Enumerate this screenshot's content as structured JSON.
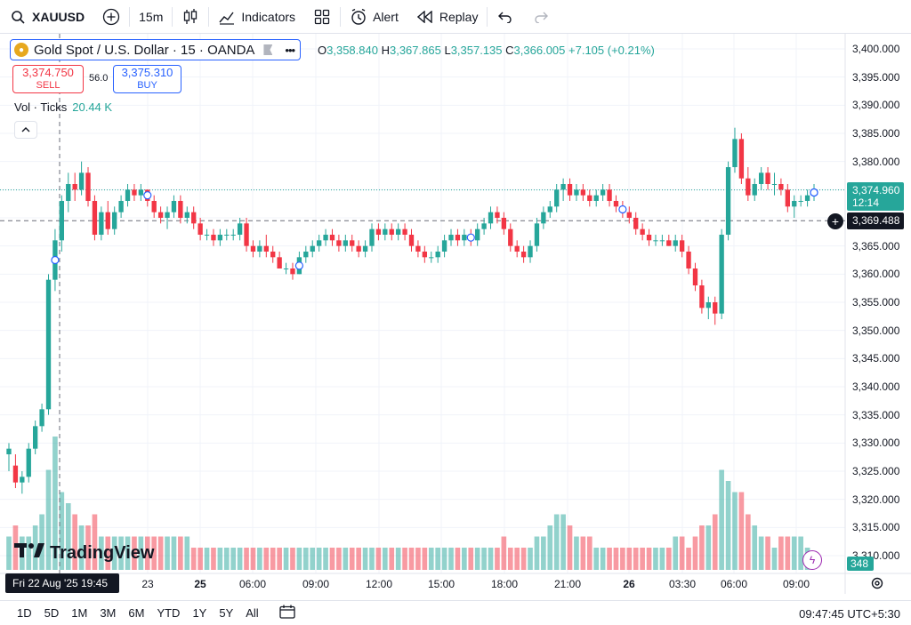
{
  "toolbar": {
    "symbol": "XAUUSD",
    "interval": "15m",
    "indicators_label": "Indicators",
    "alert_label": "Alert",
    "replay_label": "Replay"
  },
  "legend": {
    "title": "Gold Spot / U.S. Dollar · 15 · OANDA",
    "ohlc": {
      "o_label": "O",
      "o": "3,358.840",
      "h_label": "H",
      "h": "3,367.865",
      "l_label": "L",
      "l": "3,357.135",
      "c_label": "C",
      "c": "3,366.005",
      "change": "+7.105 (+0.21%)"
    },
    "sell_price": "3,374.750",
    "sell_label": "SELL",
    "spread": "56.0",
    "buy_price": "3,375.310",
    "buy_label": "BUY",
    "volume_label": "Vol · Ticks",
    "volume_value": "20.44 K"
  },
  "price_scale": {
    "ticks": [
      "3,400.000",
      "3,395.000",
      "3,390.000",
      "3,385.000",
      "3,380.000",
      "3,375.000",
      "3,370.000",
      "3,365.000",
      "3,360.000",
      "3,355.000",
      "3,350.000",
      "3,345.000",
      "3,340.000",
      "3,335.000",
      "3,330.000",
      "3,325.000",
      "3,320.000",
      "3,315.000",
      "3,310.000"
    ],
    "last_price": "3,374.960",
    "countdown": "12:14",
    "crosshair_price": "3,369.488",
    "volume_last": "348"
  },
  "time_axis": {
    "crosshair_label": "Fri 22 Aug '25   19:45",
    "ticks": [
      "23",
      "25",
      "06:00",
      "09:00",
      "12:00",
      "15:00",
      "18:00",
      "21:00",
      "26",
      "03:30",
      "06:00",
      "09:00"
    ]
  },
  "logo": {
    "text": "TradingView"
  },
  "bottom_bar": {
    "ranges": [
      "1D",
      "5D",
      "1M",
      "3M",
      "6M",
      "YTD",
      "1Y",
      "5Y",
      "All"
    ],
    "clock": "09:47:45 UTC+5:30"
  },
  "colors": {
    "up": "#26a69a",
    "down": "#f23645",
    "accent": "#2962ff"
  },
  "chart_data": {
    "type": "candlestick",
    "ylim": [
      3310,
      3400
    ],
    "last": 3374.96,
    "crosshair": 3369.488,
    "candles": [
      [
        3328,
        3330,
        3325,
        3329
      ],
      [
        3326,
        3328,
        3322,
        3323
      ],
      [
        3323,
        3325,
        3321,
        3324
      ],
      [
        3324,
        3330,
        3323,
        3329
      ],
      [
        3329,
        3334,
        3328,
        3333
      ],
      [
        3333,
        3337,
        3332,
        3336
      ],
      [
        3336,
        3360,
        3335,
        3359
      ],
      [
        3359,
        3368,
        3357,
        3366
      ],
      [
        3366,
        3374,
        3364,
        3373
      ],
      [
        3373,
        3378,
        3371,
        3376
      ],
      [
        3376,
        3378,
        3373,
        3375
      ],
      [
        3375,
        3380,
        3374,
        3378
      ],
      [
        3378,
        3379,
        3372,
        3373
      ],
      [
        3373,
        3374,
        3366,
        3367
      ],
      [
        3367,
        3372,
        3366,
        3371
      ],
      [
        3371,
        3373,
        3367,
        3368
      ],
      [
        3368,
        3372,
        3367,
        3371
      ],
      [
        3371,
        3374,
        3370,
        3373
      ],
      [
        3373,
        3376,
        3372,
        3375
      ],
      [
        3375,
        3376,
        3373,
        3374
      ],
      [
        3374,
        3376,
        3373,
        3375
      ],
      [
        3375,
        3375,
        3372,
        3373
      ],
      [
        3373,
        3374,
        3370,
        3371
      ],
      [
        3371,
        3372,
        3369,
        3370
      ],
      [
        3370,
        3372,
        3368,
        3371
      ],
      [
        3371,
        3374,
        3370,
        3373
      ],
      [
        3373,
        3374,
        3369,
        3370
      ],
      [
        3370,
        3372,
        3369,
        3371
      ],
      [
        3371,
        3372,
        3368,
        3369
      ],
      [
        3369,
        3370,
        3366,
        3367
      ],
      [
        3367,
        3368,
        3366,
        3367
      ],
      [
        3367,
        3368,
        3365,
        3366
      ],
      [
        3366,
        3368,
        3365,
        3367
      ],
      [
        3367,
        3368,
        3366,
        3367
      ],
      [
        3367,
        3368,
        3366,
        3367
      ],
      [
        3367,
        3370,
        3366,
        3369
      ],
      [
        3369,
        3370,
        3364,
        3365
      ],
      [
        3365,
        3366,
        3363,
        3364
      ],
      [
        3364,
        3366,
        3363,
        3365
      ],
      [
        3365,
        3367,
        3363,
        3364
      ],
      [
        3364,
        3365,
        3362,
        3363
      ],
      [
        3363,
        3364,
        3361,
        3361
      ],
      [
        3361,
        3362,
        3360,
        3361
      ],
      [
        3361,
        3362,
        3359,
        3360
      ],
      [
        3360,
        3364,
        3360,
        3363
      ],
      [
        3363,
        3365,
        3362,
        3364
      ],
      [
        3364,
        3366,
        3363,
        3365
      ],
      [
        3365,
        3367,
        3364,
        3366
      ],
      [
        3366,
        3368,
        3365,
        3367
      ],
      [
        3367,
        3368,
        3365,
        3366
      ],
      [
        3366,
        3367,
        3364,
        3365
      ],
      [
        3365,
        3367,
        3364,
        3366
      ],
      [
        3366,
        3367,
        3364,
        3365
      ],
      [
        3365,
        3366,
        3363,
        3364
      ],
      [
        3364,
        3366,
        3363,
        3365
      ],
      [
        3365,
        3369,
        3364,
        3368
      ],
      [
        3368,
        3369,
        3366,
        3367
      ],
      [
        3367,
        3369,
        3366,
        3368
      ],
      [
        3368,
        3369,
        3366,
        3367
      ],
      [
        3367,
        3369,
        3366,
        3368
      ],
      [
        3368,
        3369,
        3366,
        3367
      ],
      [
        3367,
        3368,
        3364,
        3365
      ],
      [
        3365,
        3366,
        3363,
        3364
      ],
      [
        3364,
        3365,
        3362,
        3363
      ],
      [
        3363,
        3364,
        3362,
        3363
      ],
      [
        3363,
        3365,
        3362,
        3364
      ],
      [
        3364,
        3367,
        3363,
        3366
      ],
      [
        3366,
        3368,
        3365,
        3367
      ],
      [
        3367,
        3368,
        3365,
        3366
      ],
      [
        3366,
        3368,
        3365,
        3367
      ],
      [
        3367,
        3368,
        3365,
        3366
      ],
      [
        3366,
        3369,
        3365,
        3368
      ],
      [
        3368,
        3370,
        3367,
        3369
      ],
      [
        3369,
        3372,
        3368,
        3371
      ],
      [
        3371,
        3372,
        3369,
        3370
      ],
      [
        3370,
        3371,
        3367,
        3368
      ],
      [
        3368,
        3369,
        3364,
        3365
      ],
      [
        3365,
        3366,
        3363,
        3364
      ],
      [
        3364,
        3365,
        3362,
        3363
      ],
      [
        3363,
        3366,
        3362,
        3365
      ],
      [
        3365,
        3370,
        3364,
        3369
      ],
      [
        3369,
        3372,
        3368,
        3371
      ],
      [
        3371,
        3373,
        3370,
        3372
      ],
      [
        3372,
        3376,
        3371,
        3375
      ],
      [
        3375,
        3377,
        3373,
        3376
      ],
      [
        3376,
        3377,
        3373,
        3374
      ],
      [
        3374,
        3376,
        3373,
        3375
      ],
      [
        3375,
        3376,
        3373,
        3374
      ],
      [
        3374,
        3375,
        3372,
        3373
      ],
      [
        3373,
        3375,
        3372,
        3374
      ],
      [
        3374,
        3376,
        3373,
        3375
      ],
      [
        3375,
        3376,
        3372,
        3373
      ],
      [
        3373,
        3374,
        3371,
        3372
      ],
      [
        3372,
        3373,
        3370,
        3371
      ],
      [
        3371,
        3372,
        3369,
        3370
      ],
      [
        3370,
        3371,
        3367,
        3368
      ],
      [
        3368,
        3369,
        3366,
        3367
      ],
      [
        3367,
        3368,
        3365,
        3366
      ],
      [
        3366,
        3367,
        3365,
        3366
      ],
      [
        3366,
        3367,
        3365,
        3366
      ],
      [
        3366,
        3367,
        3365,
        3365
      ],
      [
        3365,
        3367,
        3364,
        3366
      ],
      [
        3366,
        3367,
        3363,
        3364
      ],
      [
        3364,
        3365,
        3360,
        3361
      ],
      [
        3361,
        3362,
        3357,
        3358
      ],
      [
        3358,
        3359,
        3353,
        3354
      ],
      [
        3354,
        3356,
        3352,
        3355
      ],
      [
        3355,
        3356,
        3351,
        3353
      ],
      [
        3353,
        3368,
        3352,
        3367
      ],
      [
        3367,
        3380,
        3366,
        3379
      ],
      [
        3379,
        3386,
        3378,
        3384
      ],
      [
        3384,
        3385,
        3376,
        3377
      ],
      [
        3377,
        3379,
        3373,
        3374
      ],
      [
        3374,
        3377,
        3373,
        3376
      ],
      [
        3376,
        3379,
        3375,
        3378
      ],
      [
        3378,
        3379,
        3375,
        3376
      ],
      [
        3376,
        3378,
        3374,
        3376
      ],
      [
        3376,
        3377,
        3374,
        3375
      ],
      [
        3375,
        3376,
        3371,
        3372
      ],
      [
        3372,
        3374,
        3370,
        3373
      ],
      [
        3373,
        3374,
        3372,
        3373
      ],
      [
        3373,
        3375,
        3372,
        3374
      ],
      [
        3374,
        3376,
        3373,
        3375
      ]
    ],
    "volume": [
      3,
      4,
      3,
      3,
      4,
      5,
      9,
      12,
      7,
      6,
      5,
      4,
      4,
      5,
      3,
      3,
      3,
      3,
      3,
      3,
      3,
      3,
      3,
      3,
      3,
      3,
      3,
      3,
      2,
      2,
      2,
      2,
      2,
      2,
      2,
      2,
      2,
      2,
      2,
      2,
      2,
      2,
      2,
      2,
      2,
      2,
      2,
      2,
      2,
      2,
      2,
      2,
      2,
      2,
      2,
      2,
      2,
      2,
      2,
      2,
      2,
      2,
      2,
      2,
      2,
      2,
      2,
      2,
      2,
      2,
      2,
      2,
      2,
      2,
      2,
      3,
      2,
      2,
      2,
      2,
      3,
      3,
      4,
      5,
      5,
      4,
      3,
      3,
      3,
      2,
      2,
      2,
      2,
      2,
      2,
      2,
      2,
      2,
      2,
      2,
      2,
      3,
      3,
      2,
      3,
      4,
      4,
      5,
      9,
      8,
      7,
      7,
      5,
      4,
      3,
      3,
      2,
      3,
      3,
      3,
      3,
      2
    ],
    "markers": [
      7,
      21,
      44,
      70,
      93,
      122,
      155,
      183
    ]
  }
}
